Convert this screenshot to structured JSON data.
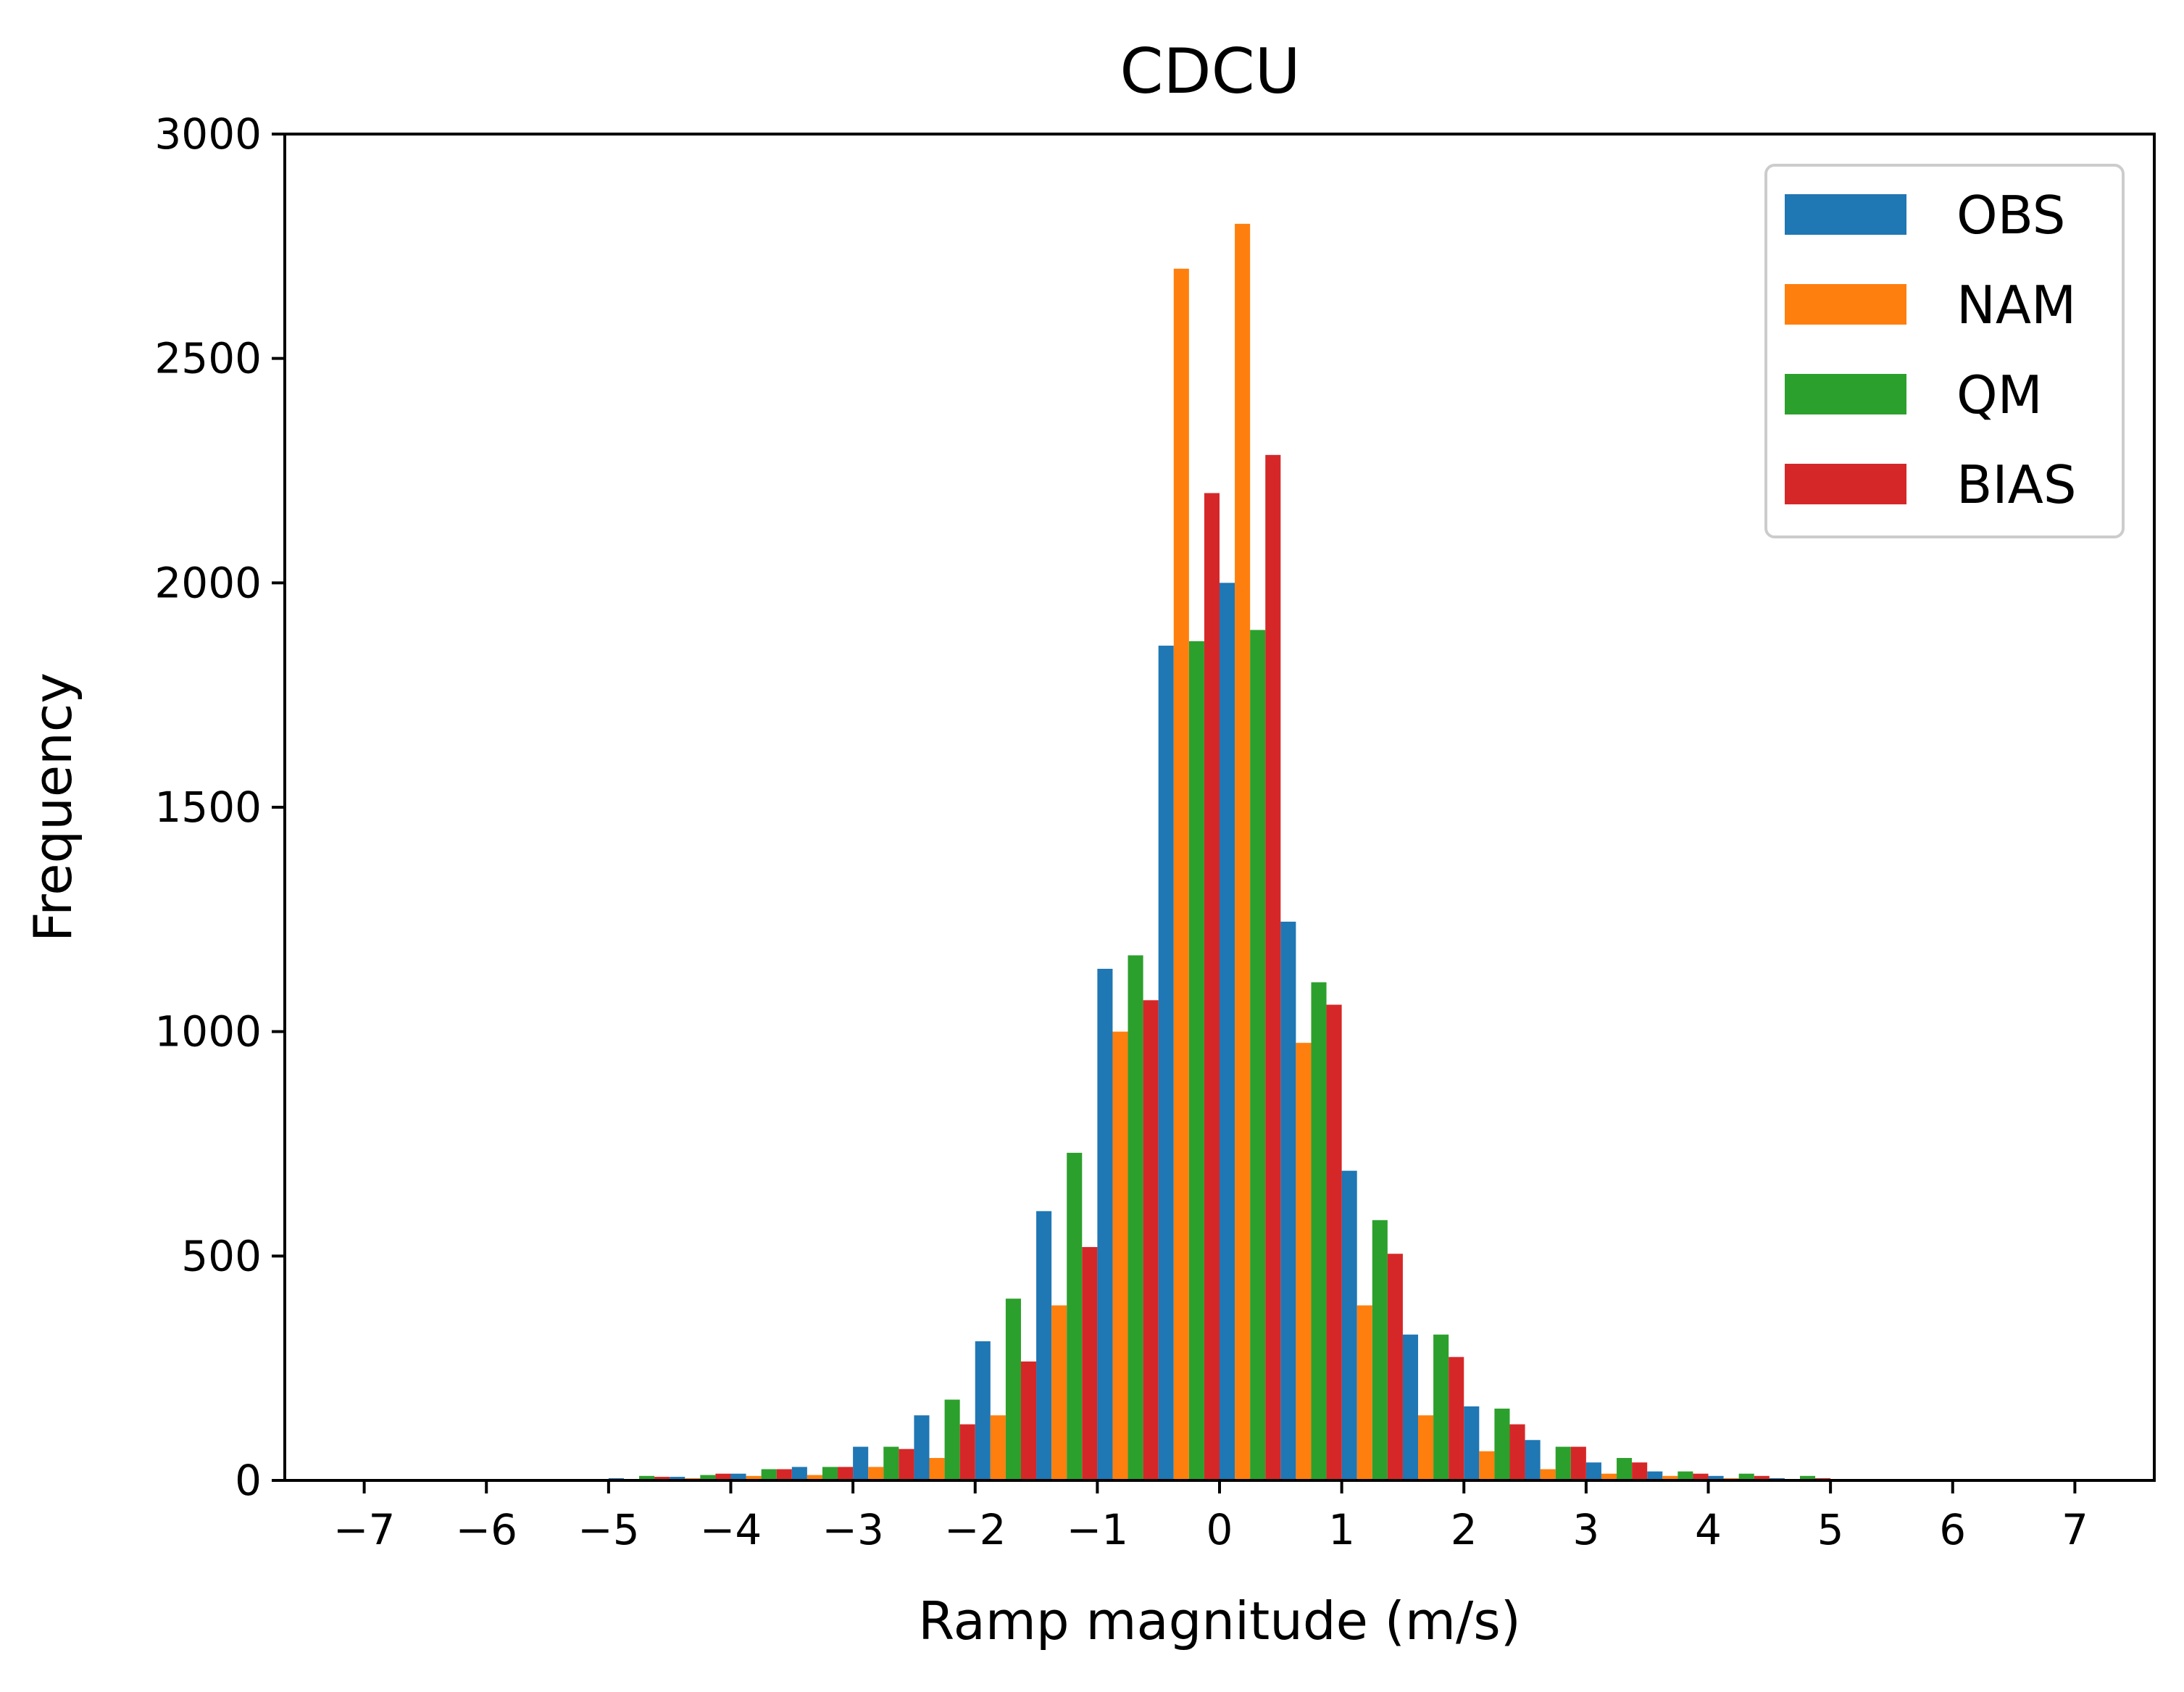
{
  "chart_data": {
    "type": "bar",
    "title": "CDCU",
    "xlabel": "Ramp magnitude (m/s)",
    "ylabel": "Frequency",
    "ylim": [
      0,
      3000
    ],
    "yticks": [
      "0",
      "500",
      "1000",
      "1500",
      "2000",
      "2500",
      "3000"
    ],
    "xticks": [
      "−7",
      "−6",
      "−5",
      "−4",
      "−3",
      "−2",
      "−1",
      "0",
      "1",
      "2",
      "3",
      "4",
      "5",
      "6",
      "7"
    ],
    "xtick_values": [
      -7,
      -6,
      -5,
      -4,
      -3,
      -2,
      -1,
      0,
      1,
      2,
      3,
      4,
      5,
      6,
      7
    ],
    "xlim": [
      -7.65,
      7.65
    ],
    "bin_centers": [
      -4.75,
      -4.25,
      -3.75,
      -3.25,
      -2.75,
      -2.25,
      -1.75,
      -1.25,
      -0.75,
      -0.25,
      0.25,
      0.75,
      1.25,
      1.75,
      2.25,
      2.75,
      3.25,
      3.75,
      4.25,
      4.75,
      5.25
    ],
    "bin_width": 0.5,
    "legend_position": "top-right",
    "grid": false,
    "series": [
      {
        "name": "OBS",
        "color": "#1f77b4",
        "values": [
          5,
          8,
          15,
          30,
          75,
          145,
          310,
          600,
          1140,
          1860,
          2000,
          1245,
          690,
          325,
          165,
          90,
          40,
          20,
          10,
          5,
          3
        ]
      },
      {
        "name": "NAM",
        "color": "#ff7f0e",
        "values": [
          2,
          5,
          10,
          12,
          30,
          50,
          145,
          390,
          1000,
          2700,
          2800,
          975,
          390,
          145,
          65,
          25,
          15,
          10,
          5,
          3,
          2
        ]
      },
      {
        "name": "QM",
        "color": "#2ca02c",
        "values": [
          10,
          12,
          25,
          30,
          75,
          180,
          405,
          730,
          1170,
          1870,
          1895,
          1110,
          580,
          325,
          160,
          75,
          50,
          20,
          15,
          10,
          3
        ]
      },
      {
        "name": "BIAS",
        "color": "#d62728",
        "values": [
          8,
          15,
          25,
          30,
          70,
          125,
          265,
          520,
          1070,
          2200,
          2285,
          1060,
          505,
          275,
          125,
          75,
          40,
          15,
          10,
          5,
          2
        ]
      }
    ]
  }
}
